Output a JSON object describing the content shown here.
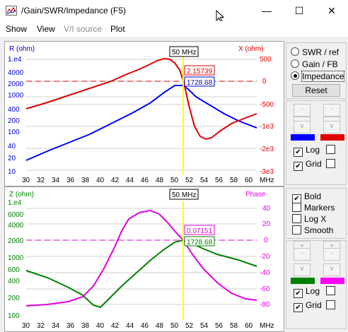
{
  "window": {
    "title": "/Gain/SWR/Impedance (F5)",
    "minimize": "—",
    "maximize": "☐",
    "close": "✕"
  },
  "menu": {
    "show": "Show",
    "view": "View",
    "vi_source": "V/I source",
    "plot": "Plot"
  },
  "top_plot": {
    "left_axis_title": "R (ohm)",
    "right_axis_title": "X (ohm)",
    "left_ticks": [
      "1.e4",
      "4000",
      "2000",
      "1000",
      "400",
      "200",
      "100",
      "40",
      "20",
      "10"
    ],
    "right_ticks": [
      "500",
      "0",
      "-500",
      "-1e3",
      "-2e3",
      "-3e3"
    ],
    "freq_marker": "50 MHz",
    "value_x": "2.15739",
    "value_r": "1728.68",
    "x_ticks": [
      "30",
      "32",
      "34",
      "36",
      "38",
      "40",
      "42",
      "44",
      "46",
      "48",
      "50",
      "52",
      "54",
      "56",
      "58",
      "60"
    ],
    "x_unit": "MHz",
    "colors": {
      "r": "#0000ff",
      "x": "#ff0000",
      "marker": "#ffff00"
    }
  },
  "bottom_plot": {
    "left_axis_title": "Z (ohm)",
    "right_axis_title": "Phase",
    "left_ticks": [
      "1.e4",
      "6000",
      "4000",
      "2000",
      "1000",
      "600",
      "400",
      "200",
      "100"
    ],
    "right_ticks": [
      "40",
      "20",
      "0",
      "-20",
      "-40",
      "-60",
      "-80"
    ],
    "freq_marker": "50 MHz",
    "value_phase": "0.07151",
    "value_z": "1728.68",
    "x_ticks": [
      "30",
      "32",
      "34",
      "36",
      "38",
      "40",
      "42",
      "44",
      "46",
      "48",
      "50",
      "52",
      "54",
      "56",
      "58",
      "60"
    ],
    "x_unit": "MHz",
    "colors": {
      "z": "#008000",
      "phase": "#ff00ff",
      "marker": "#ffff00"
    }
  },
  "mode_panel": {
    "swr": "SWR / ref",
    "gain": "Gain / FB",
    "impedance": "Impedance",
    "selected": "impedance",
    "reset": "Reset"
  },
  "top_controls": {
    "log": "Log",
    "grid": "Grid",
    "log_checked": true,
    "grid_checked": true
  },
  "bottom_options": {
    "bold": "Bold",
    "markers": "Markers",
    "logx": "Log X",
    "smooth": "Smooth",
    "bold_checked": true
  },
  "bottom_controls": {
    "log": "Log",
    "grid": "Grid",
    "log_checked": true,
    "grid_checked": true
  }
}
